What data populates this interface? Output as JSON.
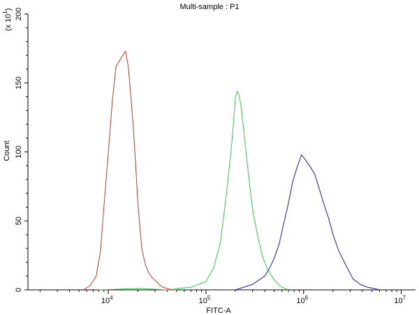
{
  "chart_data": {
    "type": "line",
    "title": "Multi-sample : P1",
    "xlabel": "FITC-A",
    "ylabel": "Count",
    "y_multiplier_label": "(x 10",
    "y_multiplier_exp": "1",
    "x_scale": "log",
    "xlim": [
      1500,
      14000000
    ],
    "ylim": [
      0,
      200
    ],
    "grid": false,
    "x_ticks": [
      {
        "base": "10",
        "exp": "4",
        "value": 10000
      },
      {
        "base": "10",
        "exp": "5",
        "value": 100000
      },
      {
        "base": "10",
        "exp": "6",
        "value": 1000000
      },
      {
        "base": "10",
        "exp": "7",
        "value": 10000000
      }
    ],
    "y_ticks": [
      {
        "label": "0",
        "value": 0
      },
      {
        "label": "50",
        "value": 50
      },
      {
        "label": "100",
        "value": 100
      },
      {
        "label": "150",
        "value": 150
      },
      {
        "label": "200",
        "value": 200
      }
    ],
    "series": [
      {
        "color": "#c0392b",
        "x": [
          5500,
          6500,
          7500,
          8300,
          9000,
          10000,
          11000,
          12000,
          13000,
          14000,
          15000,
          16000,
          17000,
          18000,
          19000,
          20000,
          21000,
          22000,
          24000,
          26000,
          28000,
          30000,
          33000,
          36000,
          40000,
          45000,
          50000
        ],
        "y": [
          0,
          3,
          10,
          28,
          60,
          100,
          138,
          162,
          166,
          170,
          173,
          162,
          140,
          118,
          92,
          64,
          46,
          30,
          18,
          12,
          9,
          7,
          4,
          2,
          1,
          0,
          0
        ]
      },
      {
        "color": "#2ecc40",
        "x": [
          8000,
          20000,
          40000,
          70000,
          100000,
          120000,
          140000,
          160000,
          180000,
          190000,
          200000,
          210000,
          220000,
          230000,
          250000,
          270000,
          300000,
          340000,
          380000,
          420000,
          470000,
          530000,
          600000,
          700000
        ],
        "y": [
          0,
          1,
          0,
          2,
          6,
          16,
          34,
          66,
          100,
          118,
          140,
          144,
          140,
          132,
          108,
          86,
          58,
          38,
          24,
          16,
          10,
          5,
          2,
          0
        ]
      },
      {
        "color": "#1a1aa6",
        "x": [
          200000,
          300000,
          400000,
          450000,
          500000,
          560000,
          620000,
          700000,
          770000,
          850000,
          950000,
          1050000,
          1150000,
          1300000,
          1450000,
          1600000,
          1800000,
          2000000,
          2300000,
          2700000,
          3200000,
          3800000,
          4500000,
          5200000,
          6000000
        ],
        "y": [
          0,
          4,
          10,
          16,
          23,
          33,
          47,
          63,
          78,
          88,
          98,
          94,
          90,
          84,
          73,
          63,
          52,
          40,
          28,
          18,
          8,
          4,
          2,
          1,
          0
        ]
      }
    ]
  }
}
